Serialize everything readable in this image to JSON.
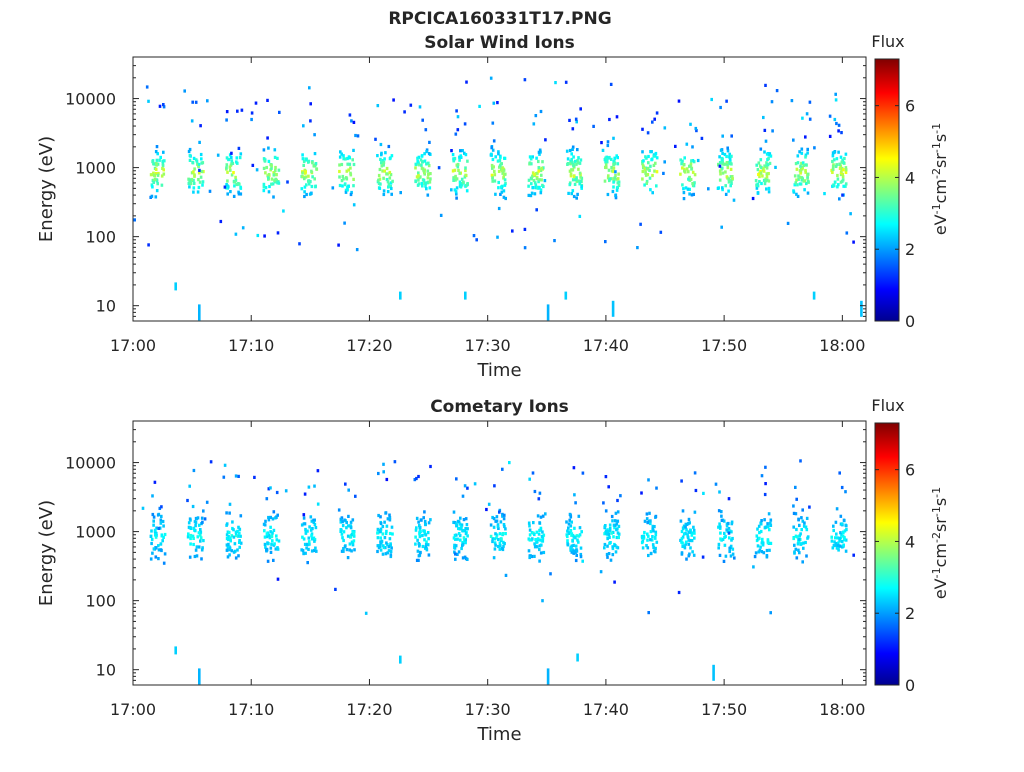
{
  "figure": {
    "title": "RPCICA160331T17.PNG"
  },
  "chart_data": [
    {
      "type": "heatmap",
      "title": "Solar Wind Ions",
      "xlabel": "Time",
      "ylabel": "Energy (eV)",
      "x_ticks": [
        "17:00",
        "17:10",
        "17:20",
        "17:30",
        "17:40",
        "17:50",
        "18:00"
      ],
      "x_range_minutes": [
        0,
        62
      ],
      "y_scale": "log",
      "y_ticks": [
        "10",
        "100",
        "1000",
        "10000"
      ],
      "ylim": [
        6,
        40000
      ],
      "colorbar": {
        "label": "Flux",
        "unit": "eV-1cm-2sr-1s-1",
        "ticks": [
          "0",
          "2",
          "4",
          "6"
        ],
        "range": [
          0,
          7.3
        ],
        "colormap": "jet"
      },
      "burst_period_min": 3.2,
      "burst_centers_energy_eV": 850,
      "peak_level": 4.6,
      "low_energy_events": [
        {
          "t": 5.5,
          "e": 8,
          "level": 2.2
        },
        {
          "t": 3.5,
          "e": 19,
          "level": 2.4
        },
        {
          "t": 22.5,
          "e": 14,
          "level": 2.4
        },
        {
          "t": 28.0,
          "e": 14,
          "level": 2.4
        },
        {
          "t": 35.0,
          "e": 8,
          "level": 2.2
        },
        {
          "t": 36.5,
          "e": 14,
          "level": 2.4
        },
        {
          "t": 40.5,
          "e": 9,
          "level": 2.3
        },
        {
          "t": 57.5,
          "e": 14,
          "level": 2.4
        },
        {
          "t": 61.5,
          "e": 9,
          "level": 2.3
        }
      ]
    },
    {
      "type": "heatmap",
      "title": "Cometary Ions",
      "xlabel": "Time",
      "ylabel": "Energy (eV)",
      "x_ticks": [
        "17:00",
        "17:10",
        "17:20",
        "17:30",
        "17:40",
        "17:50",
        "18:00"
      ],
      "x_range_minutes": [
        0,
        62
      ],
      "y_scale": "log",
      "y_ticks": [
        "10",
        "100",
        "1000",
        "10000"
      ],
      "ylim": [
        6,
        40000
      ],
      "colorbar": {
        "label": "Flux",
        "unit": "eV-1cm-2sr-1s-1",
        "ticks": [
          "0",
          "2",
          "4",
          "6"
        ],
        "range": [
          0,
          7.3
        ],
        "colormap": "jet"
      },
      "burst_period_min": 3.2,
      "burst_centers_energy_eV": 850,
      "peak_level": 2.9,
      "low_energy_events": [
        {
          "t": 5.5,
          "e": 8,
          "level": 2.2
        },
        {
          "t": 3.5,
          "e": 19,
          "level": 2.4
        },
        {
          "t": 22.5,
          "e": 14,
          "level": 2.4
        },
        {
          "t": 35.0,
          "e": 8,
          "level": 2.2
        },
        {
          "t": 37.5,
          "e": 15,
          "level": 2.4
        },
        {
          "t": 49.0,
          "e": 9,
          "level": 2.3
        }
      ]
    }
  ]
}
